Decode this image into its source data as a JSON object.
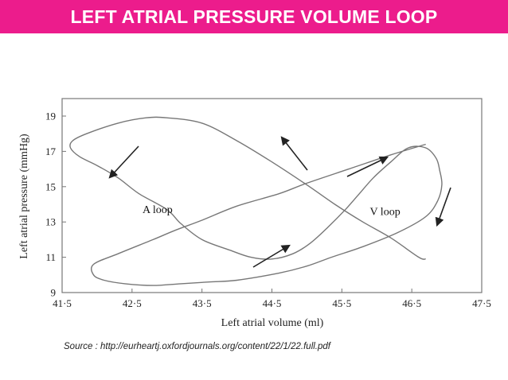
{
  "header": {
    "title": "LEFT ATRIAL PRESSURE VOLUME LOOP",
    "background_color": "#ec1c8c",
    "text_color": "#ffffff"
  },
  "chart_data": {
    "type": "line",
    "title": "",
    "xlabel": "Left atrial volume (ml)",
    "ylabel": "Left atrial pressure (mmHg)",
    "xlim": [
      41.5,
      47.5
    ],
    "ylim": [
      9,
      20
    ],
    "x_tick_labels": [
      "41·5",
      "42·5",
      "43·5",
      "44·5",
      "45·5",
      "46·5",
      "47·5"
    ],
    "y_tick_labels": [
      "9",
      "11",
      "13",
      "15",
      "17",
      "19"
    ],
    "grid": false,
    "series": [
      {
        "x": [
          46.7,
          46.2,
          45.6,
          45.0,
          44.6,
          44.0,
          43.5,
          43.1,
          42.8,
          42.3,
          41.95,
          41.95,
          42.1,
          42.4,
          42.8,
          43.2,
          43.6,
          44.0,
          44.6,
          45.0,
          45.35,
          45.8,
          46.3,
          46.7,
          46.87,
          46.93,
          46.9,
          46.85,
          46.7,
          46.45,
          46.2,
          45.95,
          45.75,
          45.55,
          45.3,
          45.05,
          44.8,
          44.5,
          44.2,
          43.9,
          43.5,
          43.2,
          43.0,
          42.6,
          42.3,
          42.0,
          41.75,
          41.62,
          41.65,
          41.85,
          42.3,
          42.7,
          43.0,
          43.5,
          44.0,
          44.5,
          45.0,
          45.4,
          45.8,
          46.2,
          46.6,
          46.7
        ],
        "y": [
          17.4,
          16.8,
          16.0,
          15.2,
          14.6,
          13.9,
          13.1,
          12.5,
          12.0,
          11.2,
          10.6,
          10.0,
          9.7,
          9.5,
          9.4,
          9.5,
          9.6,
          9.7,
          10.1,
          10.5,
          11.0,
          11.6,
          12.4,
          13.3,
          14.2,
          15.1,
          15.9,
          16.6,
          17.2,
          17.2,
          16.4,
          15.5,
          14.6,
          13.7,
          12.7,
          11.8,
          11.2,
          10.9,
          11.0,
          11.4,
          12.0,
          12.9,
          13.7,
          14.6,
          15.5,
          16.2,
          16.7,
          17.2,
          17.6,
          18.0,
          18.6,
          18.9,
          18.9,
          18.6,
          17.6,
          16.4,
          15.1,
          14.0,
          13.0,
          12.1,
          11.0,
          10.9
        ]
      }
    ],
    "annotations": [
      {
        "text": "A loop",
        "x": 42.65,
        "y": 13.5
      },
      {
        "text": "V loop",
        "x": 45.9,
        "y": 13.4
      }
    ],
    "direction_arrows": 6
  },
  "source_text": "Source : http://eurheartj.oxfordjournals.org/content/22/1/22.full.pdf"
}
